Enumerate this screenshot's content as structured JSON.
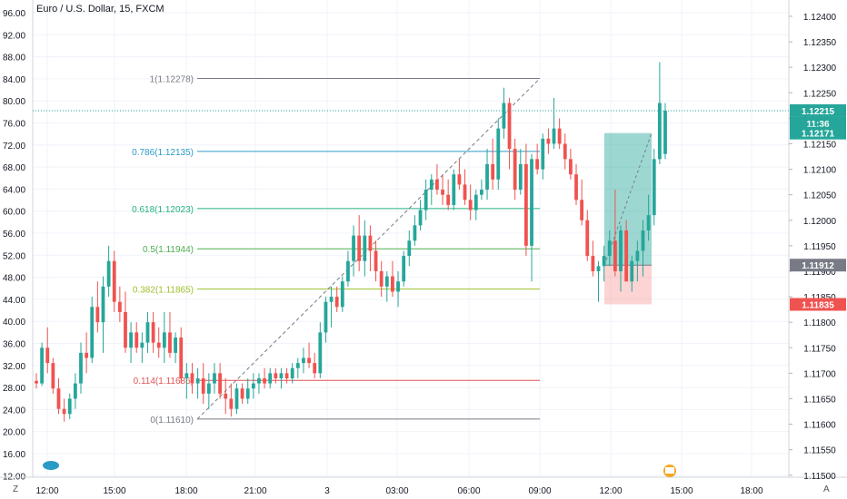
{
  "chart_data": {
    "type": "candlestick",
    "title": "Euro / U.S. Dollar, 15, FXCM",
    "left_axis": {
      "ticks": [
        "96.00",
        "92.00",
        "88.00",
        "84.00",
        "80.00",
        "76.00",
        "72.00",
        "68.00",
        "64.00",
        "60.00",
        "56.00",
        "52.00",
        "48.00",
        "44.00",
        "40.00",
        "36.00",
        "32.00",
        "28.00",
        "24.00",
        "20.00",
        "16.00",
        "12.00"
      ]
    },
    "right_axis": {
      "ticks": [
        "1.12400",
        "1.12350",
        "1.12300",
        "1.12250",
        "1.12200",
        "1.12150",
        "1.12100",
        "1.12050",
        "1.12000",
        "1.11950",
        "1.11900",
        "1.11850",
        "1.11800",
        "1.11750",
        "1.11700",
        "1.11650",
        "1.11600",
        "1.11550",
        "1.11500"
      ],
      "ylim": [
        1.115,
        1.1241
      ]
    },
    "x_ticks": [
      "12:00",
      "15:00",
      "18:00",
      "21:00",
      "3",
      "03:00",
      "06:00",
      "09:00",
      "12:00",
      "15:00",
      "18:00"
    ],
    "price_labels": [
      {
        "text": "1.12215",
        "color": "#26a69a"
      },
      {
        "text": "11:36",
        "color": "#26a69a"
      },
      {
        "text": "1.12171",
        "color": "#26a69a"
      },
      {
        "text": "1.11912",
        "color": "#787b86"
      },
      {
        "text": "1.11835",
        "color": "#ef5350"
      }
    ],
    "fib_levels": [
      {
        "label": "1(1.12278)",
        "value": 1.12278,
        "color": "#787b86"
      },
      {
        "label": "0.786(1.12135)",
        "value": 1.12135,
        "color": "#2a9bc5"
      },
      {
        "label": "0.618(1.12023)",
        "value": 1.12023,
        "color": "#22b37f"
      },
      {
        "label": "0.5(1.11944)",
        "value": 1.11944,
        "color": "#4caf50"
      },
      {
        "label": "0.382(1.11865)",
        "value": 1.11865,
        "color": "#9dbf2a"
      },
      {
        "label": "0.114(1.11686)",
        "value": 1.11686,
        "color": "#e05353"
      },
      {
        "label": "0(1.11610)",
        "value": 1.1161,
        "color": "#787b86"
      }
    ],
    "current_price": 1.12215,
    "position": {
      "entry": 1.11912,
      "target": 1.12171,
      "stop": 1.11835
    },
    "candles": [
      [
        1.11685,
        1.117,
        1.1167,
        1.1168
      ],
      [
        1.1168,
        1.1176,
        1.11675,
        1.1175
      ],
      [
        1.1175,
        1.1179,
        1.117,
        1.1172
      ],
      [
        1.1172,
        1.1173,
        1.1166,
        1.1167
      ],
      [
        1.1167,
        1.1169,
        1.1162,
        1.1163
      ],
      [
        1.1163,
        1.1165,
        1.11605,
        1.1162
      ],
      [
        1.1162,
        1.1166,
        1.1161,
        1.1165
      ],
      [
        1.1165,
        1.117,
        1.1163,
        1.1168
      ],
      [
        1.1168,
        1.1176,
        1.1166,
        1.1174
      ],
      [
        1.1174,
        1.1178,
        1.117,
        1.1173
      ],
      [
        1.1173,
        1.1185,
        1.1172,
        1.1183
      ],
      [
        1.1183,
        1.1188,
        1.1178,
        1.118
      ],
      [
        1.118,
        1.1189,
        1.1174,
        1.1187
      ],
      [
        1.1187,
        1.1195,
        1.1185,
        1.1192
      ],
      [
        1.1192,
        1.1194,
        1.1182,
        1.1184
      ],
      [
        1.1184,
        1.1187,
        1.118,
        1.1182
      ],
      [
        1.1182,
        1.1186,
        1.1174,
        1.1175
      ],
      [
        1.1175,
        1.118,
        1.1172,
        1.1178
      ],
      [
        1.1178,
        1.118,
        1.1174,
        1.1175
      ],
      [
        1.1175,
        1.1178,
        1.1172,
        1.1176
      ],
      [
        1.1176,
        1.1182,
        1.1174,
        1.118
      ],
      [
        1.118,
        1.1182,
        1.1174,
        1.1176
      ],
      [
        1.1176,
        1.1179,
        1.1173,
        1.1175
      ],
      [
        1.1175,
        1.1182,
        1.1172,
        1.1178
      ],
      [
        1.1178,
        1.1182,
        1.1173,
        1.1174
      ],
      [
        1.1174,
        1.1178,
        1.1172,
        1.1177
      ],
      [
        1.1177,
        1.1179,
        1.1168,
        1.1169
      ],
      [
        1.1169,
        1.1172,
        1.1165,
        1.117
      ],
      [
        1.117,
        1.1172,
        1.1166,
        1.1168
      ],
      [
        1.1168,
        1.1171,
        1.1165,
        1.1169
      ],
      [
        1.1169,
        1.1172,
        1.1164,
        1.1166
      ],
      [
        1.1166,
        1.117,
        1.1163,
        1.1168
      ],
      [
        1.1168,
        1.1172,
        1.1166,
        1.117
      ],
      [
        1.117,
        1.1172,
        1.1165,
        1.1166
      ],
      [
        1.1166,
        1.1169,
        1.1162,
        1.1165
      ],
      [
        1.1165,
        1.1168,
        1.11615,
        1.1163
      ],
      [
        1.1163,
        1.1168,
        1.1162,
        1.1167
      ],
      [
        1.1167,
        1.1168,
        1.1164,
        1.1165
      ],
      [
        1.1165,
        1.1169,
        1.1164,
        1.1167
      ],
      [
        1.1167,
        1.117,
        1.1165,
        1.1168
      ],
      [
        1.1168,
        1.117,
        1.1166,
        1.1169
      ],
      [
        1.1169,
        1.1171,
        1.1167,
        1.1168
      ],
      [
        1.1168,
        1.1171,
        1.1167,
        1.117
      ],
      [
        1.117,
        1.1171,
        1.1168,
        1.1169
      ],
      [
        1.1169,
        1.1171,
        1.1167,
        1.117
      ],
      [
        1.117,
        1.1171,
        1.1168,
        1.1169
      ],
      [
        1.1169,
        1.1172,
        1.1168,
        1.1171
      ],
      [
        1.1171,
        1.1173,
        1.1169,
        1.1172
      ],
      [
        1.1172,
        1.1175,
        1.117,
        1.1173
      ],
      [
        1.1173,
        1.1176,
        1.1171,
        1.1172
      ],
      [
        1.1172,
        1.1174,
        1.1169,
        1.117
      ],
      [
        1.117,
        1.118,
        1.1169,
        1.1178
      ],
      [
        1.1178,
        1.1185,
        1.1176,
        1.1184
      ],
      [
        1.1184,
        1.1187,
        1.1179,
        1.1185
      ],
      [
        1.1185,
        1.1187,
        1.1182,
        1.1183
      ],
      [
        1.1183,
        1.1189,
        1.1182,
        1.1188
      ],
      [
        1.1188,
        1.1194,
        1.1187,
        1.1192
      ],
      [
        1.1192,
        1.1199,
        1.1189,
        1.1197
      ],
      [
        1.1197,
        1.1201,
        1.119,
        1.1192
      ],
      [
        1.1192,
        1.12,
        1.1189,
        1.1197
      ],
      [
        1.1197,
        1.1199,
        1.119,
        1.1194
      ],
      [
        1.1194,
        1.1196,
        1.1188,
        1.119
      ],
      [
        1.119,
        1.1192,
        1.1185,
        1.1187
      ],
      [
        1.1187,
        1.119,
        1.1184,
        1.1189
      ],
      [
        1.1189,
        1.1192,
        1.1185,
        1.1186
      ],
      [
        1.1186,
        1.119,
        1.1183,
        1.1188
      ],
      [
        1.1188,
        1.1194,
        1.1187,
        1.1193
      ],
      [
        1.1193,
        1.1198,
        1.1191,
        1.1196
      ],
      [
        1.1196,
        1.1201,
        1.1195,
        1.1199
      ],
      [
        1.1199,
        1.1204,
        1.1198,
        1.1202
      ],
      [
        1.1202,
        1.1208,
        1.12,
        1.1206
      ],
      [
        1.1206,
        1.1209,
        1.1203,
        1.1208
      ],
      [
        1.1208,
        1.1211,
        1.1205,
        1.1206
      ],
      [
        1.1206,
        1.1209,
        1.1203,
        1.1205
      ],
      [
        1.1205,
        1.1208,
        1.1202,
        1.1203
      ],
      [
        1.1203,
        1.121,
        1.1202,
        1.1209
      ],
      [
        1.1209,
        1.1212,
        1.1206,
        1.1207
      ],
      [
        1.1207,
        1.121,
        1.1203,
        1.1204
      ],
      [
        1.1204,
        1.1207,
        1.12,
        1.1202
      ],
      [
        1.1202,
        1.1206,
        1.12,
        1.1205
      ],
      [
        1.1205,
        1.1208,
        1.1204,
        1.1206
      ],
      [
        1.1206,
        1.1214,
        1.1204,
        1.1211
      ],
      [
        1.1211,
        1.1216,
        1.1206,
        1.1208
      ],
      [
        1.1208,
        1.122,
        1.1206,
        1.1218
      ],
      [
        1.1218,
        1.1226,
        1.1216,
        1.1223
      ],
      [
        1.1223,
        1.1224,
        1.121,
        1.1214
      ],
      [
        1.1214,
        1.1216,
        1.1204,
        1.1206
      ],
      [
        1.1206,
        1.1214,
        1.1205,
        1.1211
      ],
      [
        1.1211,
        1.1215,
        1.1193,
        1.1195
      ],
      [
        1.1195,
        1.1213,
        1.1188,
        1.1212
      ],
      [
        1.1212,
        1.1215,
        1.1209,
        1.121
      ],
      [
        1.121,
        1.1217,
        1.1208,
        1.1216
      ],
      [
        1.1216,
        1.1218,
        1.1213,
        1.1215
      ],
      [
        1.1215,
        1.1224,
        1.1214,
        1.1218
      ],
      [
        1.1218,
        1.122,
        1.1214,
        1.1215
      ],
      [
        1.1215,
        1.1217,
        1.121,
        1.1212
      ],
      [
        1.1212,
        1.1214,
        1.1208,
        1.1209
      ],
      [
        1.1209,
        1.1211,
        1.1203,
        1.1204
      ],
      [
        1.1204,
        1.1208,
        1.1199,
        1.12
      ],
      [
        1.12,
        1.1202,
        1.1192,
        1.1193
      ],
      [
        1.1193,
        1.1196,
        1.1189,
        1.119
      ],
      [
        1.119,
        1.1192,
        1.1184,
        1.1191
      ],
      [
        1.1191,
        1.1195,
        1.1188,
        1.1193
      ],
      [
        1.1193,
        1.1198,
        1.1191,
        1.1196
      ],
      [
        1.1196,
        1.1206,
        1.1189,
        1.119
      ],
      [
        1.119,
        1.1199,
        1.1186,
        1.1198
      ],
      [
        1.1198,
        1.12,
        1.1188,
        1.1188
      ],
      [
        1.1188,
        1.1193,
        1.1186,
        1.1192
      ],
      [
        1.1192,
        1.1196,
        1.1188,
        1.1194
      ],
      [
        1.1194,
        1.12,
        1.1189,
        1.1198
      ],
      [
        1.1198,
        1.1205,
        1.1196,
        1.1201
      ],
      [
        1.1201,
        1.1214,
        1.1199,
        1.1212
      ],
      [
        1.1212,
        1.1231,
        1.1211,
        1.1223
      ],
      [
        1.1213,
        1.1223,
        1.1212,
        1.12215
      ]
    ]
  }
}
